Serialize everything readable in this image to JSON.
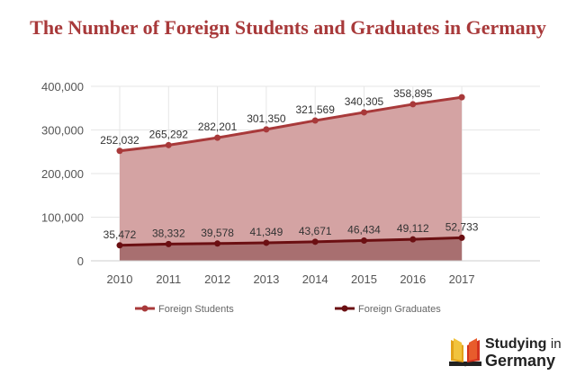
{
  "title": "The Number of Foreign Students and Graduates in Germany",
  "chart_data": {
    "type": "area",
    "title": "The Number of Foreign Students and Graduates in Germany",
    "x": [
      "2010",
      "2011",
      "2012",
      "2013",
      "2014",
      "2015",
      "2016",
      "2017"
    ],
    "ylim": [
      0,
      400000
    ],
    "yticks": [
      "0",
      "100,000",
      "200,000",
      "300,000",
      "400,000"
    ],
    "grid": true,
    "legend": "bottom",
    "series": [
      {
        "name": "Foreign Students",
        "color": "#a8393a",
        "values": [
          252032,
          265292,
          282201,
          301350,
          321569,
          340305,
          358895,
          374951
        ],
        "labels": [
          "252,032",
          "265,292",
          "282,201",
          "301,350",
          "321,569",
          "340,305",
          "358,895",
          ""
        ]
      },
      {
        "name": "Foreign Graduates",
        "color": "#6b0f12",
        "values": [
          35472,
          38332,
          39578,
          41349,
          43671,
          46434,
          49112,
          52733
        ],
        "labels": [
          "35,472",
          "38,332",
          "39,578",
          "41,349",
          "43,671",
          "46,434",
          "49,112",
          "52,733"
        ]
      }
    ]
  },
  "logo": {
    "line1": "Studying",
    "line1_suffix": "in",
    "line2": "Germany",
    "icon": "open-book-icon"
  }
}
